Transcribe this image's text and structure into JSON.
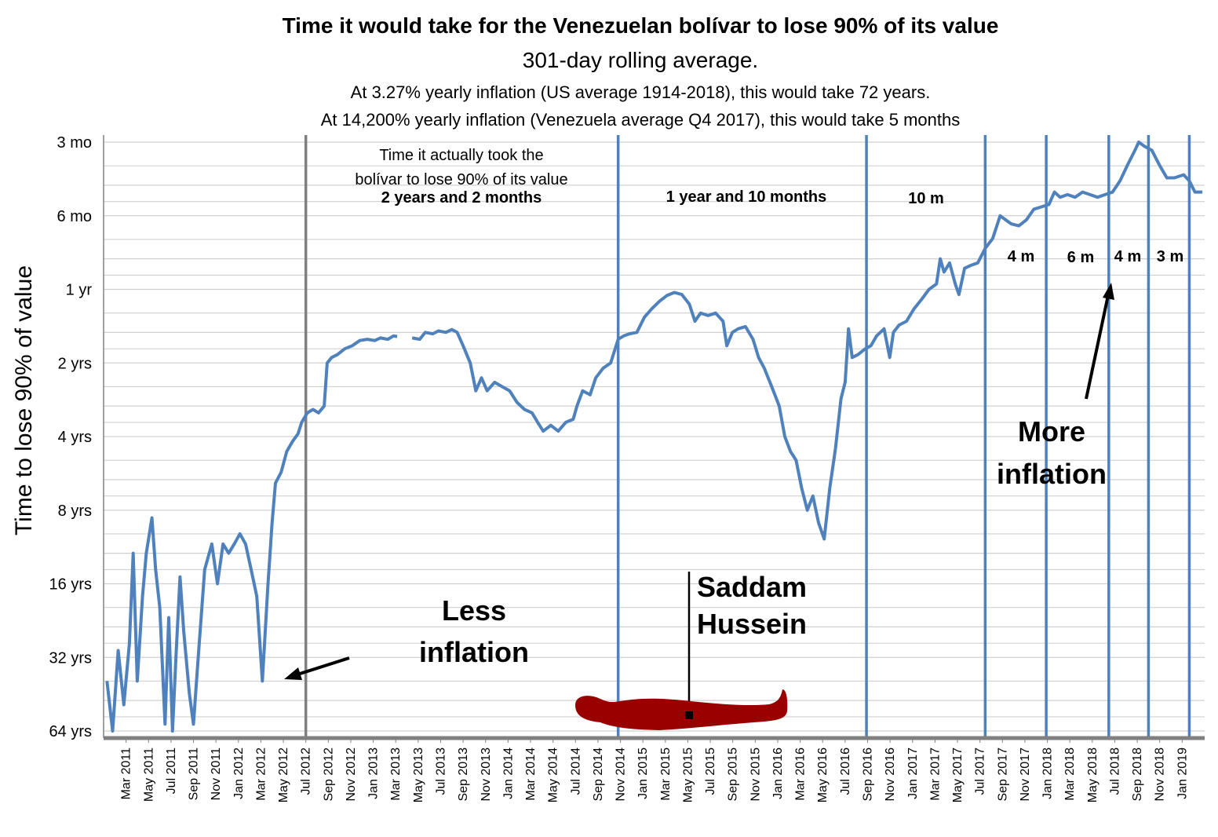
{
  "chart_data": {
    "type": "line",
    "title": "Time it would take for the Venezuelan bolívar to lose 90% of its value",
    "subtitle": "301-day rolling average.",
    "notes": [
      "At 3.27% yearly inflation (US average 1914-2018), this would take 72 years.",
      "At 14,200% yearly inflation (Venezuela average Q4 2017), this would take 5 months"
    ],
    "ylabel": "Time to lose 90% of value",
    "y_scale": "log",
    "y_unit": "years",
    "y_range": [
      0.25,
      64
    ],
    "y_ticks": [
      {
        "value": 0.25,
        "label": "3 mo"
      },
      {
        "value": 0.5,
        "label": "6 mo"
      },
      {
        "value": 1,
        "label": "1 yr"
      },
      {
        "value": 2,
        "label": "2 yrs"
      },
      {
        "value": 4,
        "label": "4 yrs"
      },
      {
        "value": 8,
        "label": "8 yrs"
      },
      {
        "value": 16,
        "label": "16 yrs"
      },
      {
        "value": 32,
        "label": "32 yrs"
      },
      {
        "value": 64,
        "label": "64 yrs"
      }
    ],
    "x_range": [
      "2011-01",
      "2019-03"
    ],
    "x_ticks": [
      "Mar 2011",
      "May 2011",
      "Jul 2011",
      "Sep 2011",
      "Nov 2011",
      "Jan 2012",
      "Mar 2012",
      "May 2012",
      "Jul 2012",
      "Sep 2012",
      "Nov 2012",
      "Jan 2013",
      "Mar 2013",
      "May 2013",
      "Jul 2013",
      "Sep 2013",
      "Nov 2013",
      "Jan 2014",
      "Mar 2014",
      "May 2014",
      "Jul 2014",
      "Sep 2014",
      "Nov 2014",
      "Jan 2015",
      "Mar 2015",
      "May 2015",
      "Jul 2015",
      "Sep 2015",
      "Nov 2015",
      "Jan 2016",
      "Mar 2016",
      "May 2016",
      "Jul 2016",
      "Sep 2016",
      "Nov 2016",
      "Jan 2017",
      "Mar 2017",
      "May 2017",
      "Jul 2017",
      "Sep 2017",
      "Nov 2017",
      "Jan 2018",
      "Mar 2018",
      "May 2018",
      "Jul 2018",
      "Sep 2018",
      "Nov 2018",
      "Jan 2019"
    ],
    "series": [
      {
        "name": "Time to lose 90% of value (years)",
        "color": "#4f81bd",
        "points": [
          [
            "2011-01-10",
            40
          ],
          [
            "2011-01-25",
            64
          ],
          [
            "2011-02-10",
            30
          ],
          [
            "2011-02-25",
            50
          ],
          [
            "2011-03-10",
            28
          ],
          [
            "2011-03-20",
            12
          ],
          [
            "2011-04-01",
            40
          ],
          [
            "2011-04-15",
            18
          ],
          [
            "2011-04-25",
            12
          ],
          [
            "2011-05-10",
            8.6
          ],
          [
            "2011-05-20",
            14
          ],
          [
            "2011-06-01",
            20
          ],
          [
            "2011-06-15",
            60
          ],
          [
            "2011-06-25",
            22
          ],
          [
            "2011-07-05",
            64
          ],
          [
            "2011-07-15",
            30
          ],
          [
            "2011-07-25",
            15
          ],
          [
            "2011-08-05",
            25
          ],
          [
            "2011-08-20",
            45
          ],
          [
            "2011-09-01",
            60
          ],
          [
            "2011-09-15",
            30
          ],
          [
            "2011-10-01",
            14
          ],
          [
            "2011-10-20",
            11
          ],
          [
            "2011-11-05",
            16
          ],
          [
            "2011-11-20",
            11
          ],
          [
            "2011-12-05",
            12
          ],
          [
            "2011-12-20",
            11
          ],
          [
            "2012-01-05",
            10
          ],
          [
            "2012-01-20",
            11
          ],
          [
            "2012-02-05",
            14
          ],
          [
            "2012-02-20",
            18
          ],
          [
            "2012-03-05",
            40
          ],
          [
            "2012-03-20",
            16
          ],
          [
            "2012-04-01",
            9
          ],
          [
            "2012-04-10",
            6.2
          ],
          [
            "2012-04-25",
            5.6
          ],
          [
            "2012-05-10",
            4.6
          ],
          [
            "2012-05-25",
            4.2
          ],
          [
            "2012-06-10",
            3.9
          ],
          [
            "2012-06-20",
            3.5
          ],
          [
            "2012-07-05",
            3.2
          ],
          [
            "2012-07-20",
            3.1
          ],
          [
            "2012-08-05",
            3.2
          ],
          [
            "2012-08-20",
            3.0
          ],
          [
            "2012-08-28",
            2.0
          ],
          [
            "2012-09-10",
            1.9
          ],
          [
            "2012-09-25",
            1.85
          ],
          [
            "2012-10-15",
            1.75
          ],
          [
            "2012-11-05",
            1.7
          ],
          [
            "2012-11-25",
            1.62
          ],
          [
            "2012-12-15",
            1.6
          ],
          [
            "2013-01-05",
            1.62
          ],
          [
            "2013-01-20",
            1.58
          ],
          [
            "2013-02-10",
            1.6
          ],
          [
            "2013-02-25",
            1.55
          ],
          [
            "2013-03-05",
            1.56
          ],
          [
            null,
            null
          ],
          [
            "2013-04-15",
            1.58
          ],
          [
            "2013-05-05",
            1.6
          ],
          [
            "2013-05-20",
            1.5
          ],
          [
            "2013-06-10",
            1.52
          ],
          [
            "2013-06-25",
            1.48
          ],
          [
            "2013-07-15",
            1.5
          ],
          [
            "2013-08-01",
            1.46
          ],
          [
            "2013-08-15",
            1.5
          ],
          [
            "2013-09-01",
            1.7
          ],
          [
            "2013-09-20",
            2.0
          ],
          [
            "2013-10-05",
            2.6
          ],
          [
            "2013-10-20",
            2.3
          ],
          [
            "2013-11-05",
            2.6
          ],
          [
            "2013-11-25",
            2.4
          ],
          [
            "2013-12-15",
            2.5
          ],
          [
            "2014-01-05",
            2.6
          ],
          [
            "2014-01-25",
            2.9
          ],
          [
            "2014-02-15",
            3.1
          ],
          [
            "2014-03-05",
            3.2
          ],
          [
            "2014-03-20",
            3.5
          ],
          [
            "2014-04-05",
            3.8
          ],
          [
            "2014-04-25",
            3.6
          ],
          [
            "2014-05-15",
            3.8
          ],
          [
            "2014-06-05",
            3.5
          ],
          [
            "2014-06-25",
            3.4
          ],
          [
            "2014-07-05",
            3.0
          ],
          [
            "2014-07-20",
            2.6
          ],
          [
            "2014-08-10",
            2.7
          ],
          [
            "2014-08-25",
            2.3
          ],
          [
            "2014-09-15",
            2.1
          ],
          [
            "2014-10-05",
            2.0
          ],
          [
            "2014-10-25",
            1.6
          ],
          [
            "2014-11-10",
            1.55
          ],
          [
            "2014-11-25",
            1.52
          ],
          [
            "2014-12-15",
            1.5
          ],
          [
            "2015-01-05",
            1.3
          ],
          [
            "2015-01-25",
            1.2
          ],
          [
            "2015-02-15",
            1.12
          ],
          [
            "2015-03-05",
            1.06
          ],
          [
            "2015-03-25",
            1.03
          ],
          [
            "2015-04-15",
            1.05
          ],
          [
            "2015-05-05",
            1.15
          ],
          [
            "2015-05-20",
            1.35
          ],
          [
            "2015-06-05",
            1.25
          ],
          [
            "2015-06-25",
            1.28
          ],
          [
            "2015-07-15",
            1.25
          ],
          [
            "2015-08-05",
            1.35
          ],
          [
            "2015-08-15",
            1.7
          ],
          [
            "2015-08-30",
            1.5
          ],
          [
            "2015-09-15",
            1.45
          ],
          [
            "2015-10-05",
            1.42
          ],
          [
            "2015-10-25",
            1.6
          ],
          [
            "2015-11-10",
            1.9
          ],
          [
            "2015-11-25",
            2.1
          ],
          [
            "2015-12-15",
            2.5
          ],
          [
            "2016-01-05",
            3.0
          ],
          [
            "2016-01-20",
            4.0
          ],
          [
            "2016-02-05",
            4.6
          ],
          [
            "2016-02-20",
            5.0
          ],
          [
            "2016-03-05",
            6.5
          ],
          [
            "2016-03-20",
            8.0
          ],
          [
            "2016-04-05",
            7.0
          ],
          [
            "2016-04-20",
            9.0
          ],
          [
            "2016-05-05",
            10.5
          ],
          [
            "2016-05-20",
            6.5
          ],
          [
            "2016-06-05",
            4.5
          ],
          [
            "2016-06-20",
            2.8
          ],
          [
            "2016-07-01",
            2.4
          ],
          [
            "2016-07-10",
            1.45
          ],
          [
            "2016-07-20",
            1.9
          ],
          [
            "2016-08-05",
            1.85
          ],
          [
            "2016-08-25",
            1.75
          ],
          [
            "2016-09-10",
            1.7
          ],
          [
            "2016-09-25",
            1.55
          ],
          [
            "2016-10-15",
            1.45
          ],
          [
            "2016-10-30",
            1.9
          ],
          [
            "2016-11-10",
            1.5
          ],
          [
            "2016-11-25",
            1.4
          ],
          [
            "2016-12-15",
            1.35
          ],
          [
            "2017-01-05",
            1.2
          ],
          [
            "2017-01-25",
            1.1
          ],
          [
            "2017-02-15",
            1.0
          ],
          [
            "2017-03-05",
            0.95
          ],
          [
            "2017-03-15",
            0.75
          ],
          [
            "2017-03-25",
            0.85
          ],
          [
            "2017-04-10",
            0.78
          ],
          [
            "2017-04-25",
            0.95
          ],
          [
            "2017-05-05",
            1.05
          ],
          [
            "2017-05-20",
            0.82
          ],
          [
            "2017-06-05",
            0.8
          ],
          [
            "2017-06-25",
            0.78
          ],
          [
            "2017-07-15",
            0.68
          ],
          [
            "2017-08-05",
            0.62
          ],
          [
            "2017-08-25",
            0.5
          ],
          [
            "2017-09-10",
            0.52
          ],
          [
            "2017-09-25",
            0.54
          ],
          [
            "2017-10-15",
            0.55
          ],
          [
            "2017-11-05",
            0.52
          ],
          [
            "2017-11-25",
            0.47
          ],
          [
            "2017-12-15",
            0.46
          ],
          [
            "2018-01-05",
            0.45
          ],
          [
            "2018-01-20",
            0.4
          ],
          [
            "2018-02-05",
            0.42
          ],
          [
            "2018-02-25",
            0.41
          ],
          [
            "2018-03-15",
            0.42
          ],
          [
            "2018-04-05",
            0.4
          ],
          [
            "2018-04-25",
            0.41
          ],
          [
            "2018-05-15",
            0.42
          ],
          [
            "2018-06-05",
            0.41
          ],
          [
            "2018-06-25",
            0.4
          ],
          [
            "2018-07-15",
            0.36
          ],
          [
            "2018-08-05",
            0.31
          ],
          [
            "2018-08-25",
            0.27
          ],
          [
            "2018-09-05",
            0.25
          ],
          [
            "2018-09-20",
            0.26
          ],
          [
            "2018-10-10",
            0.27
          ],
          [
            "2018-10-30",
            0.31
          ],
          [
            "2018-11-20",
            0.35
          ],
          [
            "2018-12-10",
            0.35
          ],
          [
            "2019-01-05",
            0.34
          ],
          [
            "2019-01-20",
            0.36
          ],
          [
            "2019-02-05",
            0.4
          ],
          [
            "2019-02-25",
            0.4
          ]
        ]
      }
    ],
    "vertical_lines": [
      {
        "date": "2012-07-01",
        "color": "#808080"
      },
      {
        "date": "2014-10-25",
        "color": "#4f81bd"
      },
      {
        "date": "2016-08-28",
        "color": "#4f81bd"
      },
      {
        "date": "2017-07-15",
        "color": "#4f81bd"
      },
      {
        "date": "2017-12-28",
        "color": "#4f81bd"
      },
      {
        "date": "2018-06-15",
        "color": "#4f81bd"
      },
      {
        "date": "2018-10-01",
        "color": "#4f81bd"
      },
      {
        "date": "2019-01-20",
        "color": "#4f81bd"
      }
    ],
    "annotations": {
      "period_heading_1": "Time it actually took the",
      "period_heading_2": "bolívar to lose 90% of its value",
      "period_1": "2 years and 2 months",
      "period_2": "1 year and 10 months",
      "period_3": "10 m",
      "period_4": "4 m",
      "period_5": "6 m",
      "period_6": "4 m",
      "period_7": "3 m",
      "less_1": "Less",
      "less_2": "inflation",
      "more_1": "More",
      "more_2": "inflation",
      "saddam_1": "Saddam",
      "saddam_2": "Hussein"
    },
    "colors": {
      "line": "#4f81bd",
      "axis": "#808080",
      "grid": "#d0d0d0",
      "figure": "#990000"
    }
  }
}
